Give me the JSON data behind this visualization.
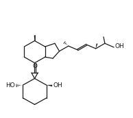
{
  "bg_color": "#ffffff",
  "line_color": "#1a1a1a",
  "lw": 0.9,
  "fig_width": 1.94,
  "fig_height": 1.72,
  "dpi": 100,
  "xlim": [
    0.0,
    9.5
  ],
  "ylim": [
    0.0,
    9.0
  ]
}
